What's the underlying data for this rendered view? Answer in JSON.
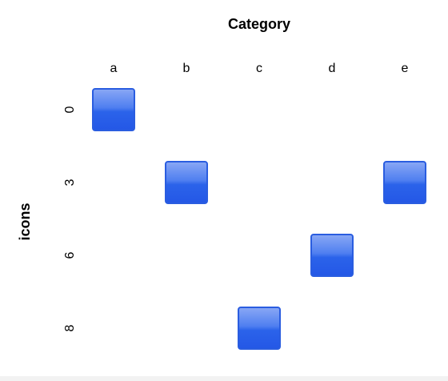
{
  "chart_data": {
    "type": "scatter",
    "title": "Category",
    "y_label": "icons",
    "categories": [
      "a",
      "b",
      "c",
      "d",
      "e"
    ],
    "values": [
      0,
      3,
      8,
      6,
      3
    ],
    "yticks": [
      0,
      3,
      6,
      8
    ],
    "color": "#2a5de0"
  }
}
